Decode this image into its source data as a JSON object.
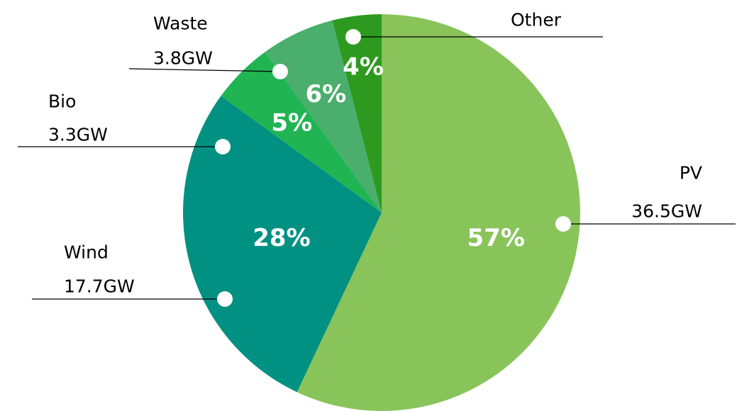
{
  "chart_data": {
    "type": "pie",
    "title": "",
    "legend": "none",
    "slices": [
      {
        "name": "PV",
        "label_value": "36.5GW",
        "percent_label": "57%",
        "value": 57,
        "color": "#88c45a"
      },
      {
        "name": "Wind",
        "label_value": "17.7GW",
        "percent_label": "28%",
        "value": 28,
        "color": "#009183"
      },
      {
        "name": "Bio",
        "label_value": "3.3GW",
        "percent_label": "5%",
        "value": 5,
        "color": "#21b453"
      },
      {
        "name": "Waste",
        "label_value": "3.8GW",
        "percent_label": "6%",
        "value": 6,
        "color": "#4aae6c"
      },
      {
        "name": "Other",
        "label_value": "",
        "percent_label": "4%",
        "value": 4,
        "color": "#2d9a1f"
      }
    ]
  }
}
